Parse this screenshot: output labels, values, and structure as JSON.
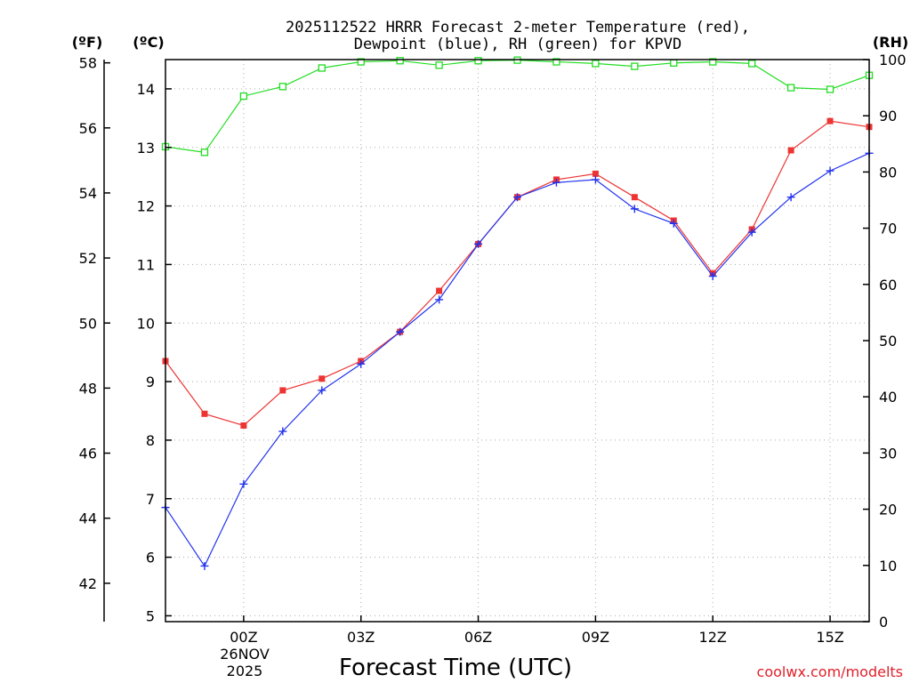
{
  "chart_data": {
    "type": "line",
    "title_lines": [
      "2025112522 HRRR Forecast 2-meter Temperature (red),",
      "Dewpoint (blue), RH (green) for KPVD"
    ],
    "xlabel": "Forecast Time (UTC)",
    "credit": "coolwx.com/modelts",
    "date_label": [
      "26NOV",
      "2025"
    ],
    "x": [
      22,
      23,
      24,
      25,
      26,
      27,
      28,
      29,
      30,
      31,
      32,
      33,
      34,
      35,
      36,
      37,
      38,
      39,
      40
    ],
    "x_ticks": [
      {
        "x": 24,
        "label": "00Z"
      },
      {
        "x": 27,
        "label": "03Z"
      },
      {
        "x": 30,
        "label": "06Z"
      },
      {
        "x": 33,
        "label": "09Z"
      },
      {
        "x": 36,
        "label": "12Z"
      },
      {
        "x": 39,
        "label": "15Z"
      }
    ],
    "xlim": [
      22,
      40
    ],
    "y_celsius": {
      "label": "(ºC)",
      "ylim": [
        4.9,
        14.5
      ],
      "ticks": [
        5,
        6,
        7,
        8,
        9,
        10,
        11,
        12,
        13,
        14
      ]
    },
    "y_fahrenheit": {
      "label": "(ºF)",
      "ticks": [
        42,
        44,
        46,
        48,
        50,
        52,
        54,
        56,
        58
      ]
    },
    "y_rh": {
      "label": "(RH)",
      "ylim": [
        0,
        100
      ],
      "ticks": [
        0,
        10,
        20,
        30,
        40,
        50,
        60,
        70,
        80,
        90,
        100
      ]
    },
    "series": [
      {
        "name": "Temperature",
        "color": "#ee3333",
        "marker": "filled-square",
        "axis": "celsius",
        "values": [
          9.35,
          8.45,
          8.25,
          8.85,
          9.05,
          9.35,
          9.85,
          10.55,
          11.35,
          12.15,
          12.45,
          12.55,
          12.15,
          11.75,
          10.85,
          11.6,
          12.95,
          13.45,
          13.35
        ]
      },
      {
        "name": "Dewpoint",
        "color": "#2233ee",
        "marker": "plus",
        "axis": "celsius",
        "values": [
          6.85,
          5.85,
          7.25,
          8.15,
          8.85,
          9.3,
          9.85,
          10.4,
          11.35,
          12.15,
          12.4,
          12.45,
          11.95,
          11.7,
          10.8,
          11.55,
          12.15,
          12.6,
          12.9
        ]
      },
      {
        "name": "RH",
        "color": "#22dd22",
        "marker": "open-square",
        "axis": "rh",
        "values": [
          84.5,
          83.5,
          93.5,
          95.2,
          98.5,
          99.6,
          99.8,
          99.0,
          99.8,
          99.9,
          99.6,
          99.3,
          98.8,
          99.4,
          99.6,
          99.3,
          95.0,
          94.7,
          97.2
        ]
      }
    ]
  }
}
